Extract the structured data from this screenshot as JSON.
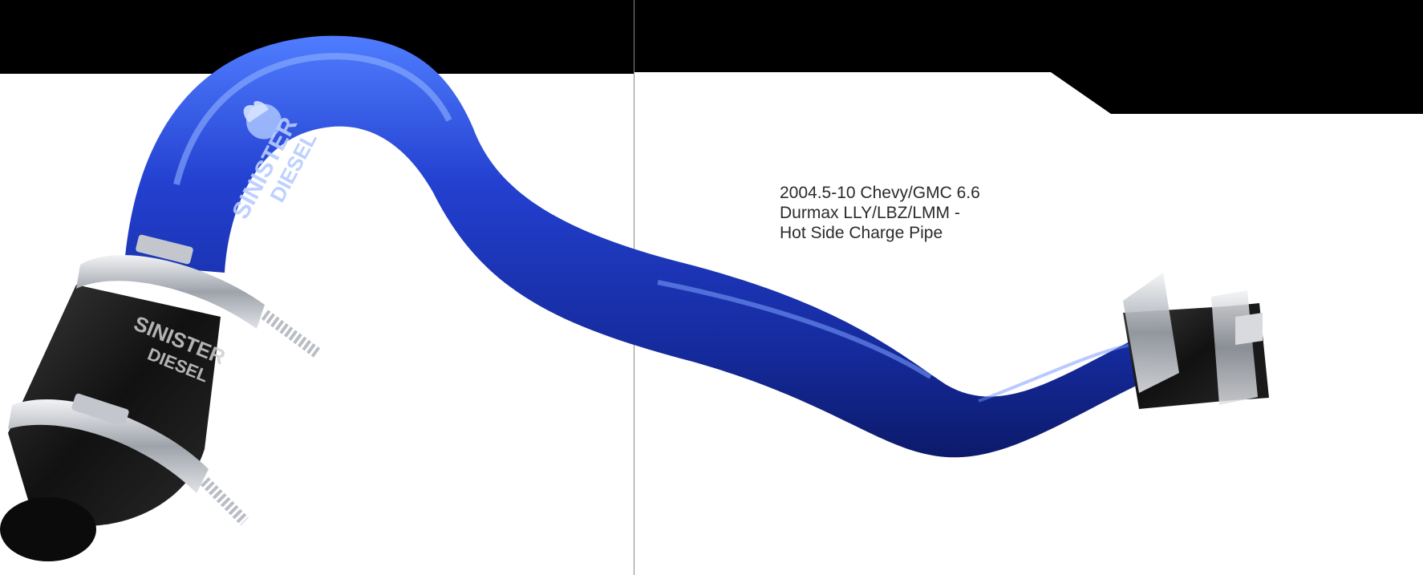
{
  "spread": {
    "caption_lines": [
      "2004.5-10 Chevy/GMC 6.6",
      "Durmax LLY/LBZ/LMM -",
      "Hot Side Charge Pipe"
    ],
    "image": {
      "subject": "blue intercooler charge pipe with black silicone boots and stainless clamps",
      "logo_text": "SINISTER DIESEL",
      "boot_logo_text": "SINISTER DIESEL"
    },
    "colors": {
      "band": "#000000",
      "background": "#ffffff",
      "pipe": "#1a2fae",
      "pipe_highlight": "#4f7dff",
      "boot": "#151515",
      "clamp": "#c9ccd2",
      "caption": "#2b2b2b",
      "divider": "#8a8a8a"
    }
  }
}
